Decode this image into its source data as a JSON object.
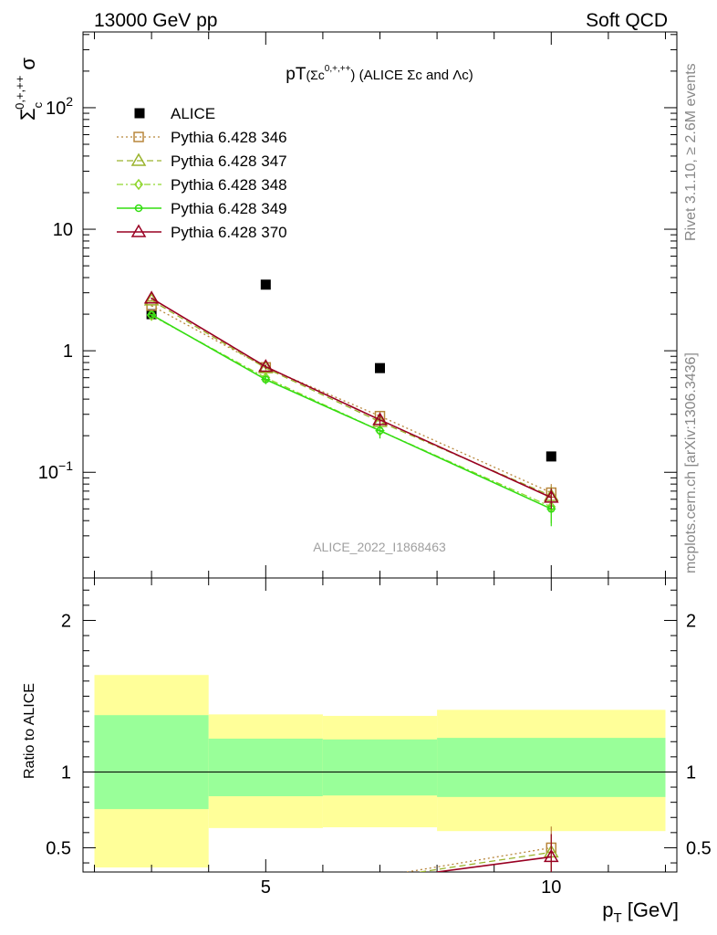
{
  "header": {
    "left": "13000 GeV pp",
    "right": "Soft QCD"
  },
  "side_texts": {
    "rivet": "Rivet 3.1.10, ≥ 2.6M events",
    "mcplots": "mcplots.cern.ch [arXiv:1306.3436]"
  },
  "watermark": "ALICE_2022_I1868463",
  "colors": {
    "data": "#000000",
    "p346": "#b8863b",
    "p347": "#9ab32d",
    "p348": "#8fd62e",
    "p349": "#33dd11",
    "p370": "#990022",
    "band_inner": "#99ff99",
    "band_outer": "#ffff99"
  },
  "chart_data": [
    {
      "type": "line",
      "title_main": "pT",
      "title_sub": "(Σc",
      "title_sup": "0,+,++",
      "title_rest": ") (ALICE Σc and Λc)",
      "ylabel_main": "Σ",
      "ylabel_sub": "c",
      "ylabel_sup": "0,+,++",
      "ylabel_tail": "σ",
      "yscale": "log",
      "xlim": [
        1.8,
        12.2
      ],
      "ylim": [
        0.0135,
        420
      ],
      "x_ticks": [
        5,
        10
      ],
      "y_ticks": [
        {
          "value": 0.1,
          "base": "10",
          "exp": "−1"
        },
        {
          "value": 1,
          "base": "1",
          "exp": ""
        },
        {
          "value": 10,
          "base": "10",
          "exp": ""
        },
        {
          "value": 100,
          "base": "10",
          "exp": "2"
        }
      ],
      "legend": "top-left",
      "series": [
        {
          "name": "ALICE",
          "marker": "square-filled",
          "line": "none",
          "x": [
            3,
            5,
            7,
            10
          ],
          "y": [
            2.0,
            3.5,
            0.72,
            0.135
          ],
          "err": [
            0.0,
            0.0,
            0.0,
            0.0
          ]
        },
        {
          "name": "Pythia 6.428 346",
          "marker": "square-open",
          "line": "dotted",
          "x": [
            3,
            5,
            7,
            10
          ],
          "y": [
            2.35,
            0.73,
            0.29,
            0.068
          ],
          "err": [
            0.04,
            0.03,
            0.03,
            0.012
          ]
        },
        {
          "name": "Pythia 6.428 347",
          "marker": "triangle-open",
          "line": "dashed",
          "x": [
            3,
            5,
            7,
            10
          ],
          "y": [
            2.6,
            0.72,
            0.26,
            0.064
          ],
          "err": [
            0.04,
            0.03,
            0.03,
            0.012
          ]
        },
        {
          "name": "Pythia 6.428 348",
          "marker": "diamond-open",
          "line": "dashdot",
          "x": [
            3,
            5,
            7,
            10
          ],
          "y": [
            1.95,
            0.6,
            0.22,
            0.052
          ],
          "err": [
            0.04,
            0.05,
            0.03,
            0.014
          ]
        },
        {
          "name": "Pythia 6.428 349",
          "marker": "circle-cross",
          "line": "solid",
          "x": [
            3,
            5,
            7,
            10
          ],
          "y": [
            1.98,
            0.58,
            0.22,
            0.05
          ],
          "err": [
            0.04,
            0.05,
            0.03,
            0.014
          ]
        },
        {
          "name": "Pythia 6.428 370",
          "marker": "triangle-open",
          "line": "solid",
          "x": [
            3,
            5,
            7,
            10
          ],
          "y": [
            2.7,
            0.74,
            0.27,
            0.062
          ],
          "err": [
            0.04,
            0.03,
            0.03,
            0.012
          ]
        }
      ]
    },
    {
      "type": "area",
      "ylabel": "Ratio to ALICE",
      "xlabel_main": "p",
      "xlabel_sub": "T",
      "xlabel_rest": " [GeV]",
      "xlim": [
        1.8,
        12.2
      ],
      "ylim": [
        0.34,
        2.28
      ],
      "x_ticks": [
        5,
        10
      ],
      "y_ticks": [
        0.5,
        1,
        2
      ],
      "bands": [
        {
          "x0": 2,
          "x1": 4,
          "inner": [
            0.755,
            1.375
          ],
          "outer": [
            0.37,
            1.64
          ]
        },
        {
          "x0": 4,
          "x1": 6,
          "inner": [
            0.84,
            1.22
          ],
          "outer": [
            0.63,
            1.38
          ]
        },
        {
          "x0": 6,
          "x1": 8,
          "inner": [
            0.845,
            1.215
          ],
          "outer": [
            0.635,
            1.37
          ]
        },
        {
          "x0": 8,
          "x1": 12,
          "inner": [
            0.835,
            1.225
          ],
          "outer": [
            0.61,
            1.41
          ]
        }
      ],
      "reference": 1,
      "ratio_series": [
        {
          "name": "Pythia 6.428 346",
          "x": [
            7,
            10
          ],
          "y": [
            0.31,
            0.5
          ],
          "err": [
            0.0,
            0.14
          ]
        },
        {
          "name": "Pythia 6.428 347",
          "x": [
            7,
            10
          ],
          "y": [
            0.3,
            0.47
          ],
          "err": [
            0.0,
            0.12
          ]
        },
        {
          "name": "Pythia 6.428 370",
          "x": [
            8,
            10
          ],
          "y": [
            0.34,
            0.44
          ],
          "err": [
            0.0,
            0.15
          ]
        }
      ]
    }
  ]
}
